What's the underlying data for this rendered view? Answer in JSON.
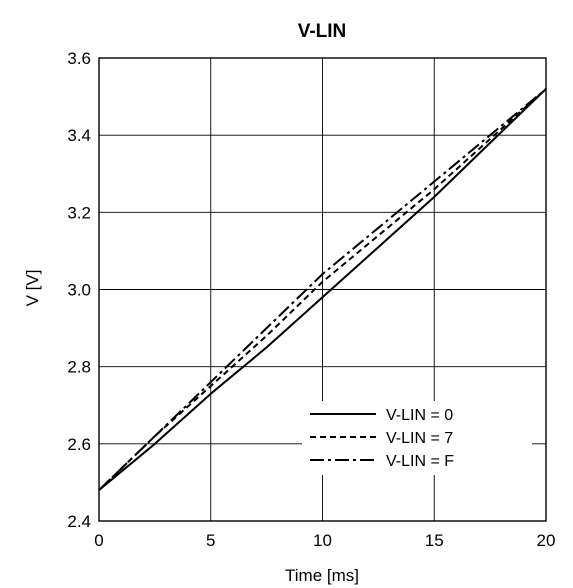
{
  "chart_data": {
    "type": "line",
    "title": "V-LIN",
    "xlabel": "Time [ms]",
    "ylabel": "V [V]",
    "xlim": [
      0,
      20
    ],
    "ylim": [
      2.4,
      3.6
    ],
    "x_ticks": [
      "0",
      "5",
      "10",
      "15",
      "20"
    ],
    "y_ticks": [
      "2.4",
      "2.6",
      "2.8",
      "3.0",
      "3.2",
      "3.4",
      "3.6"
    ],
    "grid": true,
    "legend_position": "bottom-right",
    "series": [
      {
        "name": "V-LIN = 0",
        "line_style": "solid",
        "x": [
          0,
          2.5,
          5,
          7.5,
          10,
          12.5,
          15,
          17.5,
          20
        ],
        "y": [
          2.48,
          2.6,
          2.73,
          2.85,
          2.98,
          3.11,
          3.24,
          3.38,
          3.52
        ]
      },
      {
        "name": "V-LIN = 7",
        "line_style": "dashed",
        "x": [
          0,
          2.5,
          5,
          7.5,
          10,
          12.5,
          15,
          17.5,
          20
        ],
        "y": [
          2.48,
          2.62,
          2.75,
          2.88,
          3.02,
          3.14,
          3.26,
          3.39,
          3.52
        ]
      },
      {
        "name": "V-LIN = F",
        "line_style": "dashdot",
        "x": [
          0,
          2.5,
          5,
          7.5,
          10,
          12.5,
          15,
          17.5,
          20
        ],
        "y": [
          2.48,
          2.62,
          2.76,
          2.9,
          3.04,
          3.16,
          3.28,
          3.4,
          3.52
        ]
      }
    ]
  }
}
